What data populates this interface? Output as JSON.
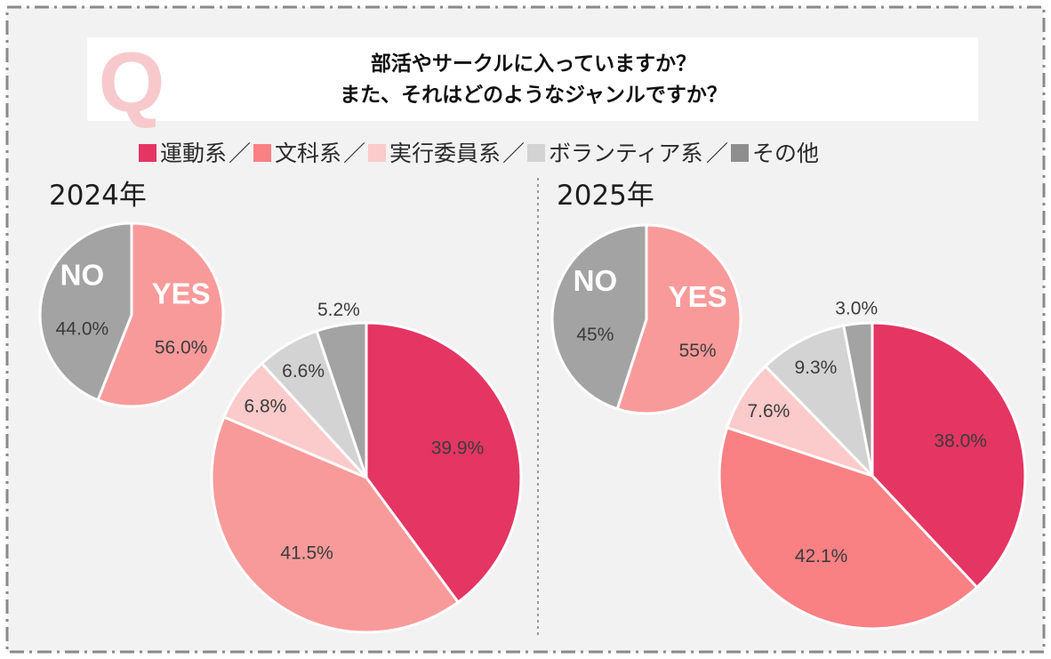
{
  "question": {
    "mark": "Q",
    "line1": "部活やサークルに入っていますか？",
    "line2": "また、それはどのようなジャンルですか？"
  },
  "legend": {
    "items": [
      {
        "label": "運動系",
        "color": "#e43563"
      },
      {
        "label": "文科系",
        "color": "#f98083"
      },
      {
        "label": "実行委員系",
        "color": "#fbcaca"
      },
      {
        "label": "ボランティア系",
        "color": "#d3d3d3"
      },
      {
        "label": "その他",
        "color": "#8e8e8e"
      }
    ],
    "separator": "／"
  },
  "chart_data": [
    {
      "type": "pie",
      "year_label": "2024年",
      "title": "",
      "slices": [
        {
          "label": "YES",
          "value": 56.0,
          "text": "56.0%",
          "color": "#f99a9a"
        },
        {
          "label": "NO",
          "value": 44.0,
          "text": "44.0%",
          "color": "#a3a3a3"
        }
      ]
    },
    {
      "type": "pie",
      "year_label": "2024年",
      "title": "",
      "slices": [
        {
          "label": "運動系",
          "value": 39.9,
          "text": "39.9%",
          "color": "#e43563"
        },
        {
          "label": "文科系",
          "value": 41.5,
          "text": "41.5%",
          "color": "#f99a9a"
        },
        {
          "label": "実行委員系",
          "value": 6.8,
          "text": "6.8%",
          "color": "#fbcaca"
        },
        {
          "label": "ボランティア系",
          "value": 6.6,
          "text": "6.6%",
          "color": "#d3d3d3"
        },
        {
          "label": "その他",
          "value": 5.2,
          "text": "5.2%",
          "color": "#a3a3a3"
        }
      ]
    },
    {
      "type": "pie",
      "year_label": "2025年",
      "title": "",
      "slices": [
        {
          "label": "YES",
          "value": 55,
          "text": "55%",
          "color": "#f99a9a"
        },
        {
          "label": "NO",
          "value": 45,
          "text": "45%",
          "color": "#a3a3a3"
        }
      ]
    },
    {
      "type": "pie",
      "year_label": "2025年",
      "title": "",
      "slices": [
        {
          "label": "運動系",
          "value": 38.0,
          "text": "38.0%",
          "color": "#e43563"
        },
        {
          "label": "文科系",
          "value": 42.1,
          "text": "42.1%",
          "color": "#f98083"
        },
        {
          "label": "実行委員系",
          "value": 7.6,
          "text": "7.6%",
          "color": "#fbcaca"
        },
        {
          "label": "ボランティア系",
          "value": 9.3,
          "text": "9.3%",
          "color": "#d3d3d3"
        },
        {
          "label": "その他",
          "value": 3.0,
          "text": "3.0%",
          "color": "#a3a3a3"
        }
      ]
    }
  ]
}
